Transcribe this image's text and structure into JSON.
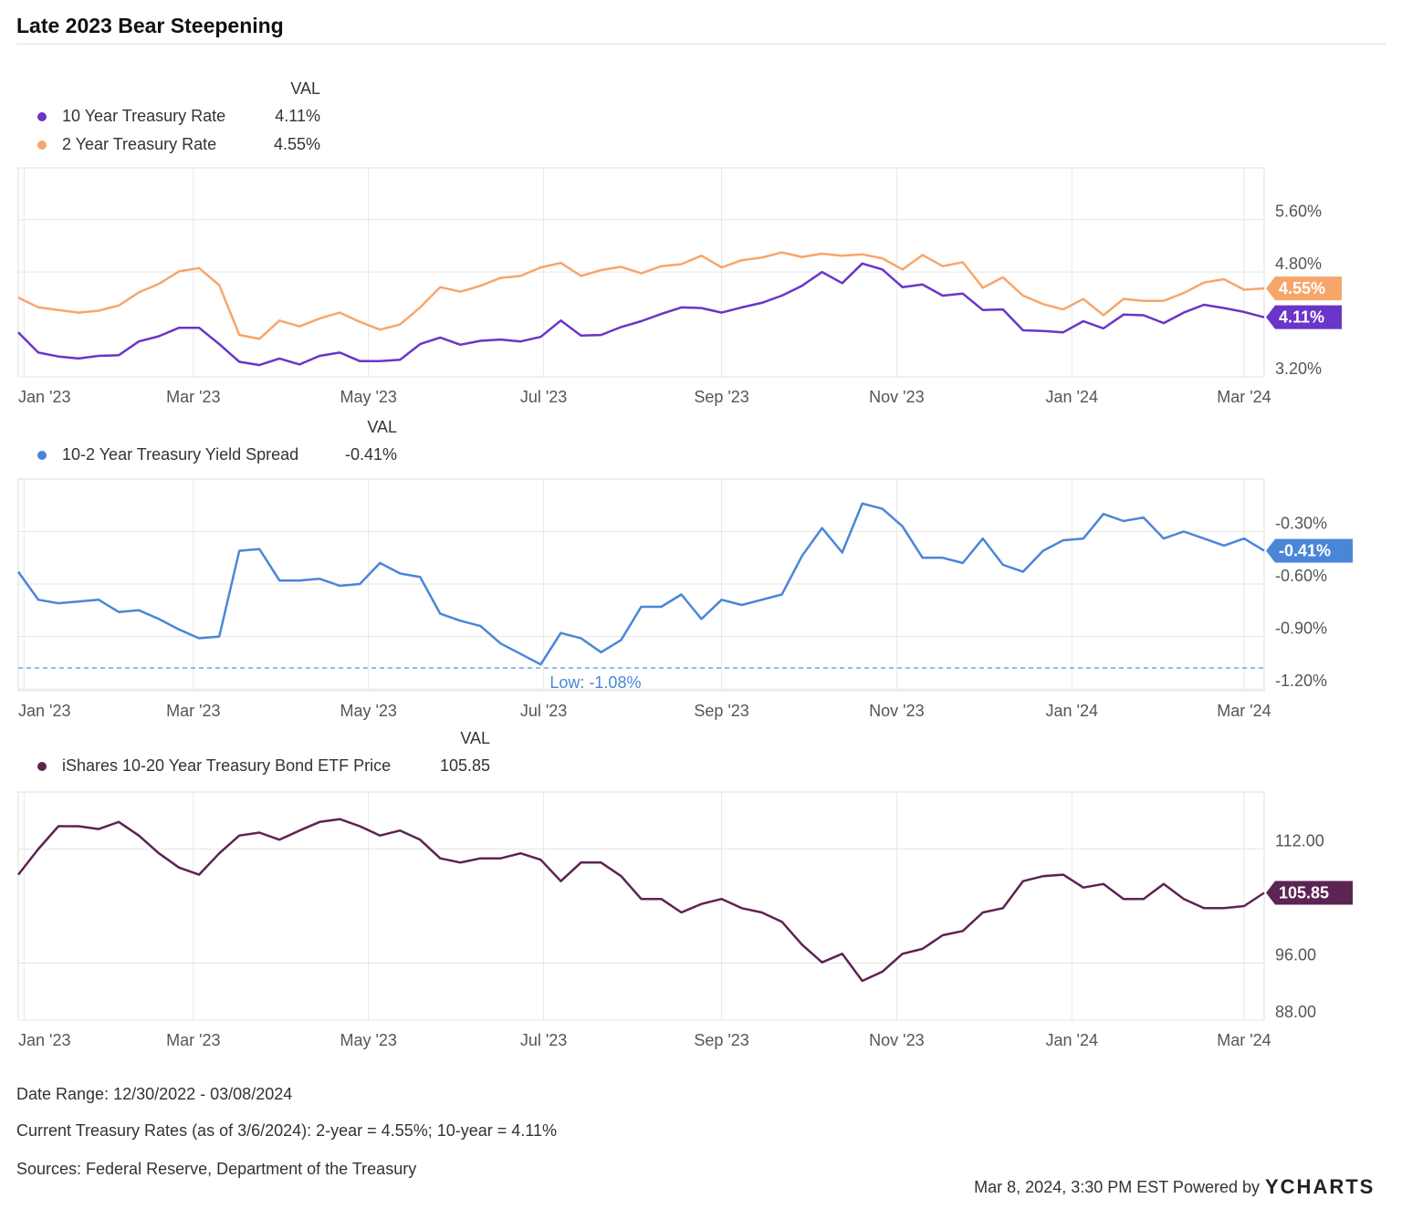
{
  "title": "Late 2023 Bear Steepening",
  "footer": {
    "date_range": "Date Range: 12/30/2022 - 03/08/2024",
    "current_rates": "Current Treasury Rates (as of 3/6/2024): 2-year =  4.55%;  10-year =  4.11%",
    "sources": "Sources: Federal Reserve, Department of the Treasury",
    "powered_by": "Mar 8, 2024, 3:30 PM EST Powered by",
    "brand": "YCHARTS"
  },
  "chart_data": [
    {
      "type": "line",
      "legend_header": "VAL",
      "grid": true,
      "x": [
        "2022-12-30",
        "2023-01-06",
        "2023-01-13",
        "2023-01-20",
        "2023-01-27",
        "2023-02-03",
        "2023-02-10",
        "2023-02-17",
        "2023-02-24",
        "2023-03-03",
        "2023-03-10",
        "2023-03-17",
        "2023-03-24",
        "2023-03-31",
        "2023-04-07",
        "2023-04-14",
        "2023-04-21",
        "2023-04-28",
        "2023-05-05",
        "2023-05-12",
        "2023-05-19",
        "2023-05-26",
        "2023-06-02",
        "2023-06-09",
        "2023-06-16",
        "2023-06-23",
        "2023-06-30",
        "2023-07-07",
        "2023-07-14",
        "2023-07-21",
        "2023-07-28",
        "2023-08-04",
        "2023-08-11",
        "2023-08-18",
        "2023-08-25",
        "2023-09-01",
        "2023-09-08",
        "2023-09-15",
        "2023-09-22",
        "2023-09-29",
        "2023-10-06",
        "2023-10-13",
        "2023-10-20",
        "2023-10-27",
        "2023-11-03",
        "2023-11-10",
        "2023-11-17",
        "2023-11-24",
        "2023-12-01",
        "2023-12-08",
        "2023-12-15",
        "2023-12-22",
        "2023-12-29",
        "2024-01-05",
        "2024-01-12",
        "2024-01-19",
        "2024-01-26",
        "2024-02-02",
        "2024-02-09",
        "2024-02-16",
        "2024-02-23",
        "2024-03-01",
        "2024-03-08"
      ],
      "xlim": [
        "2022-12-30",
        "2024-03-08"
      ],
      "xticks": [
        {
          "value": "2023-01-01",
          "label": "Jan '23"
        },
        {
          "value": "2023-03-01",
          "label": "Mar '23"
        },
        {
          "value": "2023-05-01",
          "label": "May '23"
        },
        {
          "value": "2023-07-01",
          "label": "Jul '23"
        },
        {
          "value": "2023-09-01",
          "label": "Sep '23"
        },
        {
          "value": "2023-11-01",
          "label": "Nov '23"
        },
        {
          "value": "2024-01-01",
          "label": "Jan '24"
        },
        {
          "value": "2024-03-01",
          "label": "Mar '24"
        }
      ],
      "ylim": [
        3.2,
        6.39
      ],
      "yticks": [
        {
          "value": 3.2,
          "label": "3.20%"
        },
        {
          "value": 4.8,
          "label": "4.80%"
        },
        {
          "value": 5.6,
          "label": "5.60%"
        }
      ],
      "series": [
        {
          "name": "10 Year Treasury Rate",
          "color": "#6a35c8",
          "end_label": "4.11%",
          "values": [
            3.88,
            3.57,
            3.51,
            3.48,
            3.52,
            3.53,
            3.74,
            3.82,
            3.95,
            3.95,
            3.7,
            3.43,
            3.38,
            3.48,
            3.39,
            3.52,
            3.57,
            3.44,
            3.44,
            3.46,
            3.7,
            3.8,
            3.69,
            3.75,
            3.77,
            3.74,
            3.81,
            4.06,
            3.83,
            3.84,
            3.96,
            4.05,
            4.16,
            4.26,
            4.25,
            4.18,
            4.26,
            4.33,
            4.44,
            4.59,
            4.8,
            4.63,
            4.93,
            4.84,
            4.57,
            4.61,
            4.44,
            4.47,
            4.22,
            4.23,
            3.91,
            3.9,
            3.88,
            4.05,
            3.94,
            4.15,
            4.14,
            4.02,
            4.18,
            4.3,
            4.25,
            4.19,
            4.11
          ]
        },
        {
          "name": "2 Year Treasury Rate",
          "color": "#f7a66b",
          "end_label": "4.55%",
          "values": [
            4.41,
            4.26,
            4.22,
            4.18,
            4.21,
            4.29,
            4.49,
            4.62,
            4.81,
            4.86,
            4.6,
            3.84,
            3.78,
            4.06,
            3.97,
            4.09,
            4.18,
            4.04,
            3.92,
            4.0,
            4.26,
            4.57,
            4.5,
            4.59,
            4.71,
            4.74,
            4.87,
            4.94,
            4.74,
            4.83,
            4.88,
            4.78,
            4.89,
            4.92,
            5.05,
            4.87,
            4.98,
            5.02,
            5.1,
            5.03,
            5.08,
            5.05,
            5.07,
            5.01,
            4.84,
            5.06,
            4.89,
            4.95,
            4.56,
            4.72,
            4.44,
            4.31,
            4.23,
            4.39,
            4.14,
            4.39,
            4.36,
            4.36,
            4.48,
            4.64,
            4.69,
            4.53,
            4.55
          ]
        }
      ]
    },
    {
      "type": "line",
      "legend_header": "VAL",
      "grid": true,
      "x": [
        "2022-12-30",
        "2023-01-06",
        "2023-01-13",
        "2023-01-20",
        "2023-01-27",
        "2023-02-03",
        "2023-02-10",
        "2023-02-17",
        "2023-02-24",
        "2023-03-03",
        "2023-03-10",
        "2023-03-17",
        "2023-03-24",
        "2023-03-31",
        "2023-04-07",
        "2023-04-14",
        "2023-04-21",
        "2023-04-28",
        "2023-05-05",
        "2023-05-12",
        "2023-05-19",
        "2023-05-26",
        "2023-06-02",
        "2023-06-09",
        "2023-06-16",
        "2023-06-23",
        "2023-06-30",
        "2023-07-07",
        "2023-07-14",
        "2023-07-21",
        "2023-07-28",
        "2023-08-04",
        "2023-08-11",
        "2023-08-18",
        "2023-08-25",
        "2023-09-01",
        "2023-09-08",
        "2023-09-15",
        "2023-09-22",
        "2023-09-29",
        "2023-10-06",
        "2023-10-13",
        "2023-10-20",
        "2023-10-27",
        "2023-11-03",
        "2023-11-10",
        "2023-11-17",
        "2023-11-24",
        "2023-12-01",
        "2023-12-08",
        "2023-12-15",
        "2023-12-22",
        "2023-12-29",
        "2024-01-05",
        "2024-01-12",
        "2024-01-19",
        "2024-01-26",
        "2024-02-02",
        "2024-02-09",
        "2024-02-16",
        "2024-02-23",
        "2024-03-01",
        "2024-03-08"
      ],
      "xlim": [
        "2022-12-30",
        "2024-03-08"
      ],
      "xticks": [
        {
          "value": "2023-01-01",
          "label": "Jan '23"
        },
        {
          "value": "2023-03-01",
          "label": "Mar '23"
        },
        {
          "value": "2023-05-01",
          "label": "May '23"
        },
        {
          "value": "2023-07-01",
          "label": "Jul '23"
        },
        {
          "value": "2023-09-01",
          "label": "Sep '23"
        },
        {
          "value": "2023-11-01",
          "label": "Nov '23"
        },
        {
          "value": "2024-01-01",
          "label": "Jan '24"
        },
        {
          "value": "2024-03-01",
          "label": "Mar '24"
        }
      ],
      "ylim": [
        -1.21,
        0.0
      ],
      "yticks": [
        {
          "value": -1.2,
          "label": "-1.20%"
        },
        {
          "value": -0.9,
          "label": "-0.90%"
        },
        {
          "value": -0.6,
          "label": "-0.60%"
        },
        {
          "value": -0.3,
          "label": "-0.30%"
        }
      ],
      "reference_line": {
        "value": -1.08,
        "label": "Low: -1.08%",
        "color": "#4a86d8"
      },
      "series": [
        {
          "name": "10-2 Year Treasury Yield Spread",
          "color": "#4a86d8",
          "end_label": "-0.41%",
          "values": [
            -0.53,
            -0.69,
            -0.71,
            -0.7,
            -0.69,
            -0.76,
            -0.75,
            -0.8,
            -0.86,
            -0.91,
            -0.9,
            -0.41,
            -0.4,
            -0.58,
            -0.58,
            -0.57,
            -0.61,
            -0.6,
            -0.48,
            -0.54,
            -0.56,
            -0.77,
            -0.81,
            -0.84,
            -0.94,
            -1.0,
            -1.06,
            -0.88,
            -0.91,
            -0.99,
            -0.92,
            -0.73,
            -0.73,
            -0.66,
            -0.8,
            -0.69,
            -0.72,
            -0.69,
            -0.66,
            -0.44,
            -0.28,
            -0.42,
            -0.14,
            -0.17,
            -0.27,
            -0.45,
            -0.45,
            -0.48,
            -0.34,
            -0.49,
            -0.53,
            -0.41,
            -0.35,
            -0.34,
            -0.2,
            -0.24,
            -0.22,
            -0.34,
            -0.3,
            -0.34,
            -0.38,
            -0.34,
            -0.41
          ]
        }
      ]
    },
    {
      "type": "line",
      "legend_header": "VAL",
      "grid": true,
      "x": [
        "2022-12-30",
        "2023-01-06",
        "2023-01-13",
        "2023-01-20",
        "2023-01-27",
        "2023-02-03",
        "2023-02-10",
        "2023-02-17",
        "2023-02-24",
        "2023-03-03",
        "2023-03-10",
        "2023-03-17",
        "2023-03-24",
        "2023-03-31",
        "2023-04-07",
        "2023-04-14",
        "2023-04-21",
        "2023-04-28",
        "2023-05-05",
        "2023-05-12",
        "2023-05-19",
        "2023-05-26",
        "2023-06-02",
        "2023-06-09",
        "2023-06-16",
        "2023-06-23",
        "2023-06-30",
        "2023-07-07",
        "2023-07-14",
        "2023-07-21",
        "2023-07-28",
        "2023-08-04",
        "2023-08-11",
        "2023-08-18",
        "2023-08-25",
        "2023-09-01",
        "2023-09-08",
        "2023-09-15",
        "2023-09-22",
        "2023-09-29",
        "2023-10-06",
        "2023-10-13",
        "2023-10-20",
        "2023-10-27",
        "2023-11-03",
        "2023-11-10",
        "2023-11-17",
        "2023-11-24",
        "2023-12-01",
        "2023-12-08",
        "2023-12-15",
        "2023-12-22",
        "2023-12-29",
        "2024-01-05",
        "2024-01-12",
        "2024-01-19",
        "2024-01-26",
        "2024-02-02",
        "2024-02-09",
        "2024-02-16",
        "2024-02-23",
        "2024-03-01",
        "2024-03-08"
      ],
      "xlim": [
        "2022-12-30",
        "2024-03-08"
      ],
      "xticks": [
        {
          "value": "2023-01-01",
          "label": "Jan '23"
        },
        {
          "value": "2023-03-01",
          "label": "Mar '23"
        },
        {
          "value": "2023-05-01",
          "label": "May '23"
        },
        {
          "value": "2023-07-01",
          "label": "Jul '23"
        },
        {
          "value": "2023-09-01",
          "label": "Sep '23"
        },
        {
          "value": "2023-11-01",
          "label": "Nov '23"
        },
        {
          "value": "2024-01-01",
          "label": "Jan '24"
        },
        {
          "value": "2024-03-01",
          "label": "Mar '24"
        }
      ],
      "ylim": [
        88,
        120
      ],
      "yticks": [
        {
          "value": 88,
          "label": "88.00"
        },
        {
          "value": 96,
          "label": "96.00"
        },
        {
          "value": 112,
          "label": "112.00"
        }
      ],
      "series": [
        {
          "name": "iShares 10-20 Year Treasury Bond ETF Price",
          "color": "#5c2452",
          "end_label": "105.85",
          "values": [
            108.4,
            112,
            115.2,
            115.2,
            114.8,
            115.8,
            113.9,
            111.4,
            109.4,
            108.4,
            111.4,
            113.9,
            114.3,
            113.3,
            114.6,
            115.8,
            116.2,
            115.2,
            113.9,
            114.6,
            113.3,
            110.7,
            110.1,
            110.7,
            110.7,
            111.4,
            110.5,
            107.5,
            110.1,
            110.1,
            108.2,
            105,
            105,
            103.1,
            104.3,
            105,
            103.7,
            103.1,
            101.8,
            98.6,
            96.1,
            97.3,
            93.5,
            94.8,
            97.3,
            98,
            99.9,
            100.5,
            103.1,
            103.7,
            107.5,
            108.2,
            108.4,
            106.6,
            107.1,
            105,
            105,
            107.1,
            105,
            103.7,
            103.7,
            104,
            105.85
          ]
        }
      ]
    }
  ]
}
